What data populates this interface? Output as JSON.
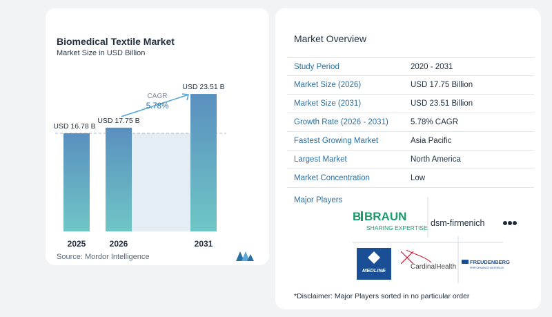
{
  "chart_data": {
    "type": "bar",
    "title": "Biomedical Textile Market",
    "subtitle": "Market Size in USD Billion",
    "categories": [
      "2025",
      "2026",
      "2031"
    ],
    "values": [
      16.78,
      17.75,
      23.51
    ],
    "data_labels": [
      "USD 16.78 B",
      "USD 17.75 B",
      "USD 23.51 B"
    ],
    "cagr_label": "CAGR",
    "cagr_value": "5.78%",
    "ylim": [
      0,
      26
    ],
    "colors": {
      "bar_top": "#5a8fbf",
      "bar_bottom": "#6fc6c6",
      "area": "#e4ecf4",
      "dashed": "#a9b8c6",
      "arrow": "#5aa7d6"
    }
  },
  "source": "Source:  Mordor Intelligence",
  "overview": {
    "title": "Market Overview",
    "rows": [
      {
        "label": "Study Period",
        "value": "2020 - 2031"
      },
      {
        "label": "Market Size (2026)",
        "value": "USD 17.75 Billion"
      },
      {
        "label": "Market Size (2031)",
        "value": "USD 23.51 Billion"
      },
      {
        "label": "Growth Rate (2026 - 2031)",
        "value": "5.78% CAGR"
      },
      {
        "label": "Fastest Growing Market",
        "value": "Asia Pacific"
      },
      {
        "label": "Largest Market",
        "value": "North America"
      },
      {
        "label": "Market Concentration",
        "value": "Low"
      }
    ],
    "players_title": "Major Players",
    "players": [
      "B|BRAUN SHARING EXPERTISE",
      "dsm-firmenich",
      "MEDLINE",
      "CardinalHealth",
      "FREUDENBERG"
    ],
    "disclaimer": "*Disclaimer: Major Players sorted in no particular order"
  }
}
